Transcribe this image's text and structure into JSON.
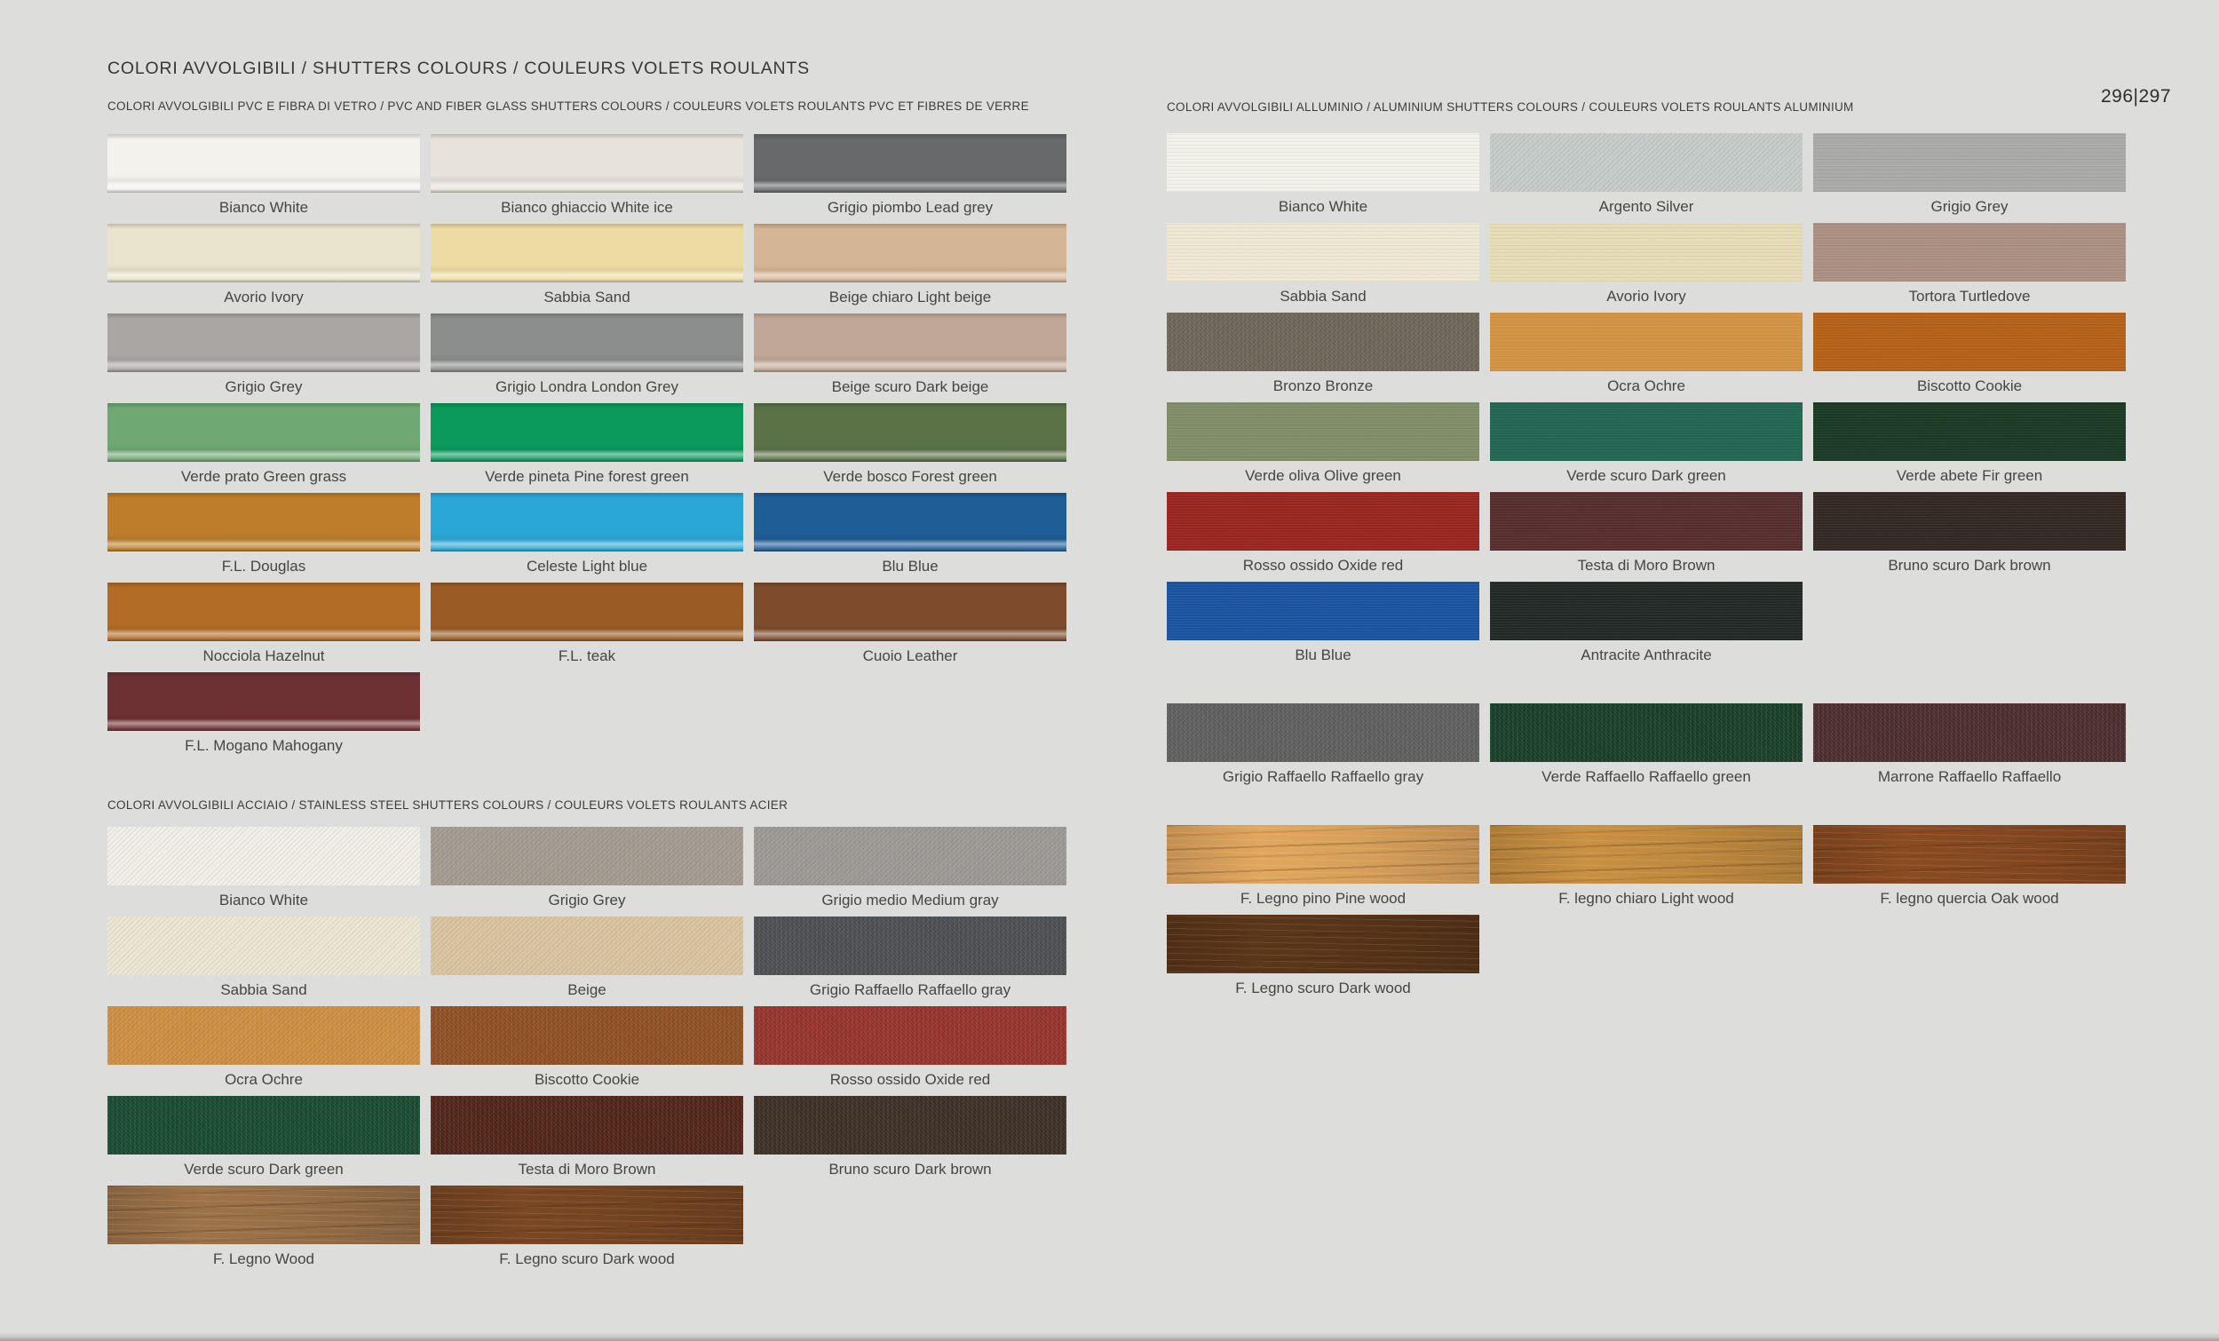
{
  "page": {
    "title": "COLORI AVVOLGIBILI / SHUTTERS COLOURS / COULEURS VOLETS ROULANTS",
    "page_number": "296|297",
    "background": "#dddddb"
  },
  "sections": [
    {
      "id": "pvc",
      "header": "COLORI AVVOLGIBILI PVC E FIBRA DI VETRO / PVC AND FIBER GLASS SHUTTERS COLOURS / COULEURS VOLETS ROULANTS PVC ET FIBRES DE VERRE",
      "finish": "gloss",
      "rows": [
        {
          "items": [
            {
              "label": "Bianco White",
              "color": "#f3f2ec"
            },
            {
              "label": "Bianco ghiaccio White ice",
              "color": "#e7e3da"
            },
            {
              "label": "Grigio piombo Lead grey",
              "color": "#67696a"
            }
          ]
        },
        {
          "items": [
            {
              "label": "Avorio Ivory",
              "color": "#eae3cd"
            },
            {
              "label": "Sabbia Sand",
              "color": "#ecdca3"
            },
            {
              "label": "Beige chiaro Light beige",
              "color": "#d4b595"
            }
          ]
        },
        {
          "items": [
            {
              "label": "Grigio Grey",
              "color": "#a9a6a3"
            },
            {
              "label": "Grigio Londra London Grey",
              "color": "#8c8e8d"
            },
            {
              "label": "Beige scuro Dark beige",
              "color": "#c0a898"
            }
          ]
        },
        {
          "items": [
            {
              "label": "Verde prato Green grass",
              "color": "#6fa873"
            },
            {
              "label": "Verde pineta Pine forest green",
              "color": "#0b9a5c"
            },
            {
              "label": "Verde bosco Forest green",
              "color": "#5b7247"
            }
          ]
        },
        {
          "items": [
            {
              "label": "F.L. Douglas",
              "color": "#bd7d2b"
            },
            {
              "label": "Celeste Light blue",
              "color": "#2ba7d7"
            },
            {
              "label": "Blu Blue",
              "color": "#1f5d97"
            }
          ]
        },
        {
          "items": [
            {
              "label": "Nocciola Hazelnut",
              "color": "#b26c26"
            },
            {
              "label": "F.L. teak",
              "color": "#9a5c24"
            },
            {
              "label": "Cuoio Leather",
              "color": "#7e4b2d"
            }
          ]
        },
        {
          "items": [
            {
              "label": "F.L. Mogano Mahogany",
              "color": "#6d3134"
            }
          ]
        }
      ]
    },
    {
      "id": "steel",
      "header": "COLORI AVVOLGIBILI ACCIAIO / STAINLESS STEEL SHUTTERS COLOURS / COULEURS VOLETS ROULANTS ACIER",
      "finish": "speckle",
      "rows": [
        {
          "items": [
            {
              "label": "Bianco White",
              "color": "#f1efe8"
            },
            {
              "label": "Grigio Grey",
              "color": "#a3998f"
            },
            {
              "label": "Grigio medio Medium gray",
              "color": "#9b9894"
            }
          ]
        },
        {
          "items": [
            {
              "label": "Sabbia Sand",
              "color": "#ebe6d2"
            },
            {
              "label": "Beige",
              "color": "#d8c39e"
            },
            {
              "label": "Grigio Raffaello Raffaello gray",
              "color": "#4b4d50"
            }
          ]
        },
        {
          "items": [
            {
              "label": "Ocra Ochre",
              "color": "#cd8d3f"
            },
            {
              "label": "Biscotto Cookie",
              "color": "#8e4e22"
            },
            {
              "label": "Rosso ossido Oxide red",
              "color": "#95312a"
            }
          ]
        },
        {
          "items": [
            {
              "label": "Verde scuro Dark green",
              "color": "#17492f"
            },
            {
              "label": "Testa di Moro Brown",
              "color": "#4f2317"
            },
            {
              "label": "Bruno scuro Dark brown",
              "color": "#3a2d24"
            }
          ]
        },
        {
          "items": [
            {
              "label": "F. Legno Wood",
              "color": "#9d7349",
              "texture": "wood"
            },
            {
              "label": "F. Legno scuro Dark wood",
              "color": "#7a4722",
              "texture": "wood"
            }
          ]
        }
      ]
    },
    {
      "id": "alu",
      "header": "COLORI AVVOLGIBILI ALLUMINIO / ALUMINIUM SHUTTERS COLOURS / COULEURS VOLETS ROULANTS ALUMINIUM",
      "finish": "brushed",
      "rows": [
        {
          "items": [
            {
              "label": "Bianco White",
              "color": "#f2f1ea"
            },
            {
              "label": "Argento Silver",
              "color": "#c5cbc9",
              "texture": "speckle"
            },
            {
              "label": "Grigio Grey",
              "color": "#a8a8a6"
            }
          ]
        },
        {
          "items": [
            {
              "label": "Sabbia Sand",
              "color": "#efe7d2"
            },
            {
              "label": "Avorio Ivory",
              "color": "#e5dbb4"
            },
            {
              "label": "Tortora Turtledove",
              "color": "#aa8d7f"
            }
          ]
        },
        {
          "items": [
            {
              "label": "Bronzo Bronze",
              "color": "#6c6456",
              "texture": "speckle"
            },
            {
              "label": "Ocra Ochre",
              "color": "#d19242"
            },
            {
              "label": "Biscotto Cookie",
              "color": "#b45f15"
            }
          ]
        },
        {
          "items": [
            {
              "label": "Verde oliva Olive green",
              "color": "#7e8b65"
            },
            {
              "label": "Verde scuro Dark green",
              "color": "#1e6450"
            },
            {
              "label": "Verde abete Fir green",
              "color": "#163720"
            }
          ]
        },
        {
          "items": [
            {
              "label": "Rosso ossido Oxide red",
              "color": "#97221d"
            },
            {
              "label": "Testa di Moro Brown",
              "color": "#552a2b"
            },
            {
              "label": "Bruno scuro Dark brown",
              "color": "#30251f"
            }
          ]
        },
        {
          "items": [
            {
              "label": "Blu Blue",
              "color": "#1551a0"
            },
            {
              "label": "Antracite Anthracite",
              "color": "#1f2522"
            }
          ]
        },
        {
          "spaced": true,
          "items": [
            {
              "label": "Grigio Raffaello Raffaello gray",
              "color": "#5d5d5d",
              "texture": "speckle"
            },
            {
              "label": "Verde Raffaello Raffaello green",
              "color": "#163d25",
              "texture": "speckle"
            },
            {
              "label": "Marrone Raffaello Raffaello",
              "color": "#4b2b2d",
              "texture": "speckle"
            }
          ]
        },
        {
          "spaced": true,
          "items": [
            {
              "label": "F. Legno pino Pine wood",
              "color": "#e2a75e",
              "texture": "wood"
            },
            {
              "label": "F. legno chiaro Light wood",
              "color": "#c99041",
              "texture": "wood"
            },
            {
              "label": "F. legno quercia Oak wood",
              "color": "#8b4b21",
              "texture": "wood"
            }
          ]
        },
        {
          "items": [
            {
              "label": "F. Legno scuro Dark wood",
              "color": "#5b3619",
              "texture": "wood"
            }
          ]
        }
      ]
    }
  ]
}
